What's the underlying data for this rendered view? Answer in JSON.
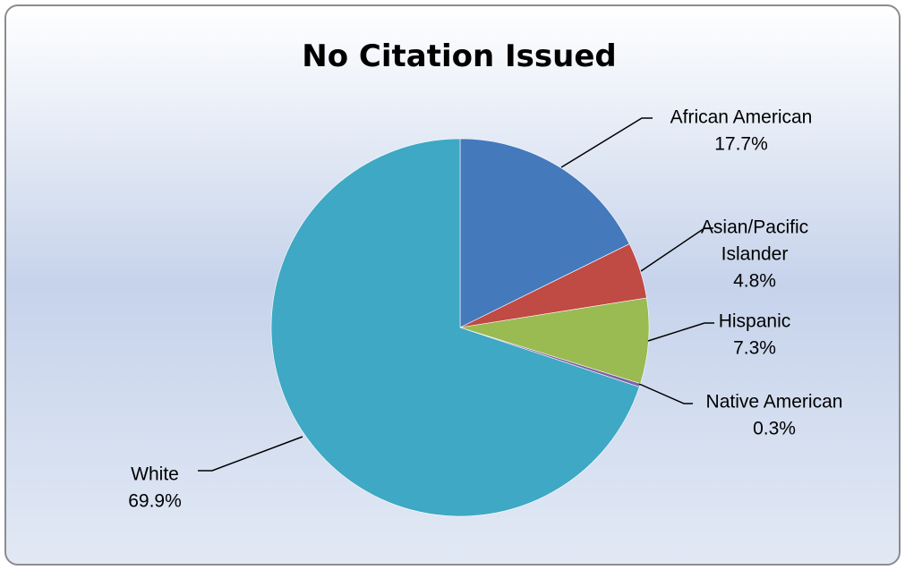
{
  "chart_data": {
    "type": "pie",
    "title": "No Citation Issued",
    "slices": [
      {
        "name": "African American",
        "label_lines": [
          "African American"
        ],
        "value": 17.7,
        "value_label": "17.7%",
        "color": "#4479bc"
      },
      {
        "name": "Asian/Pacific Islander",
        "label_lines": [
          "Asian/Pacific",
          "Islander"
        ],
        "value": 4.8,
        "value_label": "4.8%",
        "color": "#c04a44"
      },
      {
        "name": "Hispanic",
        "label_lines": [
          "Hispanic"
        ],
        "value": 7.3,
        "value_label": "7.3%",
        "color": "#9aba52"
      },
      {
        "name": "Native American",
        "label_lines": [
          "Native American"
        ],
        "value": 0.3,
        "value_label": "0.3%",
        "color": "#7f63a3"
      },
      {
        "name": "White",
        "label_lines": [
          "White"
        ],
        "value": 69.9,
        "value_label": "69.9%",
        "color": "#3fa8c4"
      }
    ],
    "start_angle_deg": 0,
    "direction": "clockwise",
    "legend": "none",
    "grid": false,
    "background_gradient": [
      "#ffffff",
      "#c6d3eb"
    ]
  }
}
